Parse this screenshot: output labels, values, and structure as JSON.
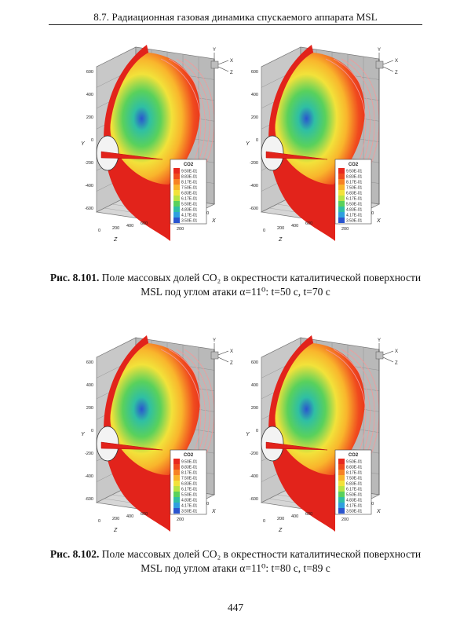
{
  "running_head": "8.7. Радиационная газовая динамика спускаемого аппарата MSL",
  "axis_letters": {
    "x": "X",
    "y": "Y",
    "z": "Z"
  },
  "legend": {
    "title": "CO2",
    "levels": [
      "9.50E-01",
      "8.83E-01",
      "8.17E-01",
      "7.50E-01",
      "6.83E-01",
      "6.17E-01",
      "5.50E-01",
      "4.83E-01",
      "4.17E-01",
      "3.50E-01"
    ],
    "colors": [
      "#e8281e",
      "#f04a1e",
      "#f78224",
      "#f9b52c",
      "#f2e23a",
      "#b7e444",
      "#59d15c",
      "#2fbfa4",
      "#2fa0de",
      "#2a55cf"
    ]
  },
  "y_ticks": [
    "600",
    "400",
    "200",
    "0",
    "-200",
    "-400",
    "-600"
  ],
  "z_ticks": [
    "0",
    "200",
    "400",
    "600"
  ],
  "x_ticks": [
    "200",
    "400",
    "600"
  ],
  "figures": [
    {
      "label": "Рис. 8.101.",
      "line1": "Поле массовых долей CO₂ в окрестности каталитической поверхности",
      "line2": "MSL под углом атаки α=11⁰: t=50 с, t=70 с"
    },
    {
      "label": "Рис. 8.102.",
      "line1": "Поле массовых долей CO₂ в окрестности каталитической поверхности",
      "line2": "MSL под углом атаки α=11⁰: t=80 с, t=89 с"
    }
  ],
  "page_number": "447"
}
